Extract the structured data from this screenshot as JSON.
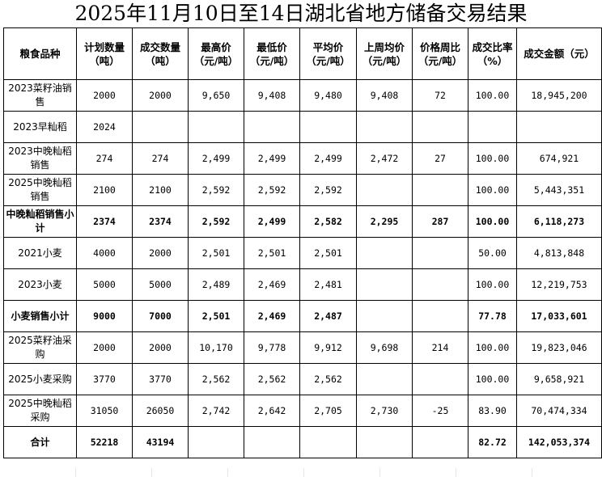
{
  "title": "2025年11月10日至14日湖北省地方储备交易结果",
  "headers": [
    "粮食品种",
    "计划数量（吨）",
    "成交数量（吨）",
    "最高价（元/吨）",
    "最低价（元/吨）",
    "平均价（元/吨）",
    "上周均价（元/吨）",
    "价格周比（元/吨）",
    "成交比率（%）",
    "成交金额（元）"
  ],
  "rows": [
    {
      "bold": false,
      "cells": [
        "2023菜籽油销售",
        "2000",
        "2000",
        "9,650",
        "9,408",
        "9,480",
        "9,408",
        "72",
        "100.00",
        "18,945,200"
      ]
    },
    {
      "bold": false,
      "cells": [
        "2023早籼稻",
        "2024",
        "",
        "",
        "",
        "",
        "",
        "",
        "",
        ""
      ]
    },
    {
      "bold": false,
      "cells": [
        "2023中晚籼稻销售",
        "274",
        "274",
        "2,499",
        "2,499",
        "2,499",
        "2,472",
        "27",
        "100.00",
        "674,921"
      ]
    },
    {
      "bold": false,
      "cells": [
        "2025中晚籼稻销售",
        "2100",
        "2100",
        "2,592",
        "2,592",
        "2,592",
        "",
        "",
        "100.00",
        "5,443,351"
      ]
    },
    {
      "bold": true,
      "cells": [
        "中晚籼稻销售小计",
        "2374",
        "2374",
        "2,592",
        "2,499",
        "2,582",
        "2,295",
        "287",
        "100.00",
        "6,118,273"
      ]
    },
    {
      "bold": false,
      "cells": [
        "2021小麦",
        "4000",
        "2000",
        "2,501",
        "2,501",
        "2,501",
        "",
        "",
        "50.00",
        "4,813,848"
      ]
    },
    {
      "bold": false,
      "cells": [
        "2023小麦",
        "5000",
        "5000",
        "2,489",
        "2,469",
        "2,481",
        "",
        "",
        "100.00",
        "12,219,753"
      ]
    },
    {
      "bold": true,
      "cells": [
        "小麦销售小计",
        "9000",
        "7000",
        "2,501",
        "2,469",
        "2,487",
        "",
        "",
        "77.78",
        "17,033,601"
      ]
    },
    {
      "bold": false,
      "cells": [
        "2025菜籽油采购",
        "2000",
        "2000",
        "10,170",
        "9,778",
        "9,912",
        "9,698",
        "214",
        "100.00",
        "19,823,046"
      ]
    },
    {
      "bold": false,
      "cells": [
        "2025小麦采购",
        "3770",
        "3770",
        "2,562",
        "2,562",
        "2,562",
        "",
        "",
        "100.00",
        "9,658,921"
      ]
    },
    {
      "bold": false,
      "cells": [
        "2025中晚籼稻采购",
        "31050",
        "26050",
        "2,742",
        "2,642",
        "2,705",
        "2,730",
        "-25",
        "83.90",
        "70,474,334"
      ]
    },
    {
      "bold": true,
      "cells": [
        "合计",
        "52218",
        "43194",
        "",
        "",
        "",
        "",
        "",
        "82.72",
        "142,053,374"
      ]
    }
  ]
}
